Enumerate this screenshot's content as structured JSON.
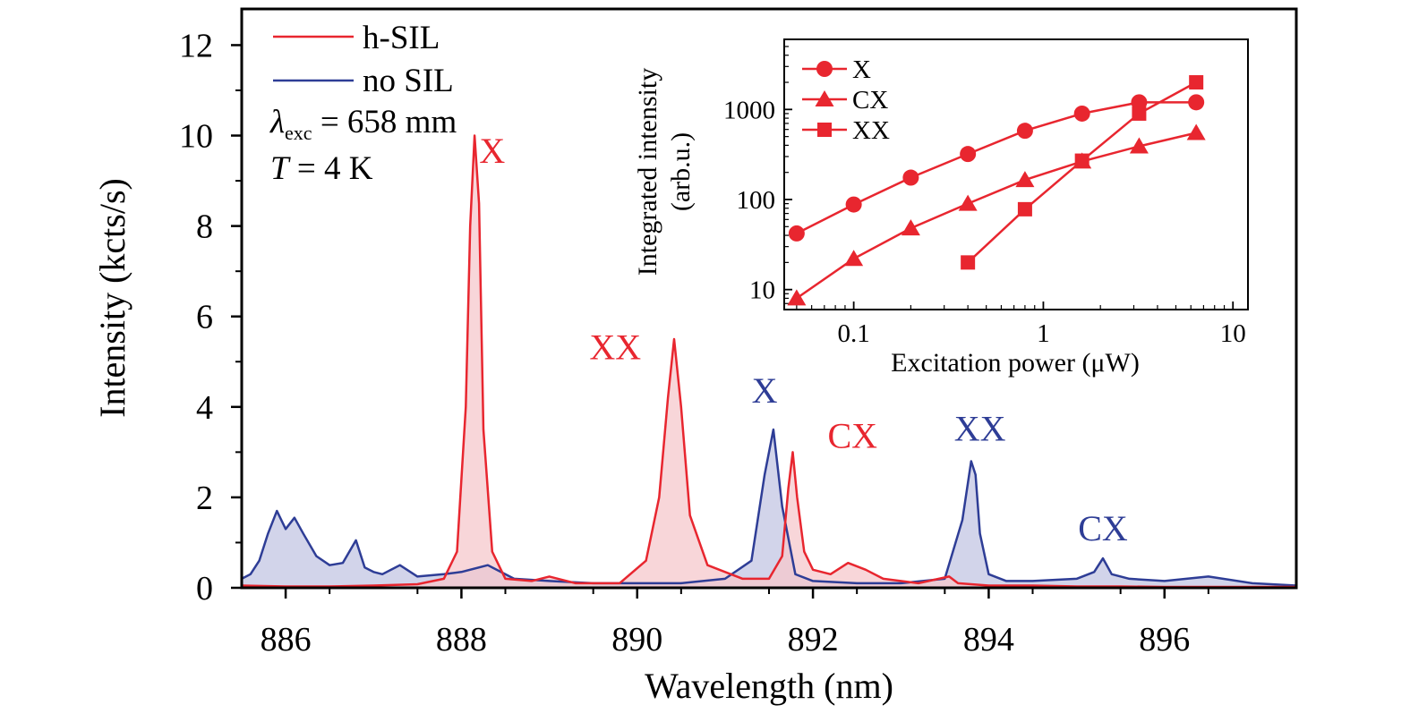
{
  "chart_data": [
    {
      "type": "line",
      "title": "",
      "xlabel": "Wavelength (nm)",
      "ylabel": "Intensity (kcts/s)",
      "xlim": [
        885.5,
        897.5
      ],
      "ylim": [
        0,
        12.8
      ],
      "xticks": [
        886,
        888,
        890,
        892,
        894,
        896
      ],
      "xtick_labels": [
        "886",
        "888",
        "890",
        "892",
        "894",
        "896"
      ],
      "yticks": [
        0,
        2,
        4,
        6,
        8,
        10,
        12
      ],
      "ytick_labels": [
        "0",
        "2",
        "4",
        "6",
        "8",
        "10",
        "12"
      ],
      "grid": false,
      "legend_position": "top-left",
      "annotation": {
        "lambda_symbol": "λ",
        "lambda_subscript": "exc",
        "lambda_value": " = 658 mm",
        "temp_symbol": "T",
        "temp_value": " = 4 K"
      },
      "series": [
        {
          "name": "h-SIL",
          "color": "#e8262f",
          "fill": "#f6c8cc",
          "x": [
            885.5,
            886.0,
            886.5,
            887.0,
            887.5,
            887.8,
            887.95,
            888.05,
            888.1,
            888.15,
            888.2,
            888.25,
            888.35,
            888.5,
            888.8,
            889.0,
            889.3,
            889.8,
            890.1,
            890.25,
            890.35,
            890.42,
            890.5,
            890.6,
            890.8,
            891.2,
            891.5,
            891.65,
            891.72,
            891.77,
            891.82,
            891.9,
            892.0,
            892.2,
            892.4,
            892.6,
            892.8,
            893.2,
            893.55,
            893.65,
            894.0,
            894.5,
            895.0,
            895.5,
            896.0,
            896.5,
            897.0,
            897.5
          ],
          "y": [
            0.05,
            0.03,
            0.03,
            0.05,
            0.08,
            0.2,
            0.8,
            4.0,
            8.0,
            10.0,
            8.5,
            3.5,
            0.8,
            0.2,
            0.15,
            0.25,
            0.1,
            0.1,
            0.6,
            2.0,
            4.2,
            5.5,
            4.0,
            1.6,
            0.5,
            0.2,
            0.2,
            0.7,
            2.2,
            3.0,
            2.0,
            0.8,
            0.4,
            0.3,
            0.55,
            0.4,
            0.2,
            0.1,
            0.25,
            0.1,
            0.05,
            0.05,
            0.03,
            0.03,
            0.02,
            0.02,
            0.02,
            0.02
          ]
        },
        {
          "name": "no SIL",
          "color": "#2e3d96",
          "fill": "#c3c6e3",
          "x": [
            885.5,
            885.6,
            885.7,
            885.8,
            885.9,
            886.0,
            886.1,
            886.2,
            886.35,
            886.5,
            886.65,
            886.8,
            886.9,
            887.0,
            887.1,
            887.3,
            887.5,
            887.8,
            888.0,
            888.3,
            888.6,
            889.0,
            889.5,
            890.0,
            890.5,
            891.0,
            891.3,
            891.45,
            891.55,
            891.65,
            891.8,
            892.0,
            892.5,
            893.0,
            893.5,
            893.7,
            893.8,
            893.85,
            893.9,
            894.0,
            894.2,
            894.5,
            895.0,
            895.2,
            895.3,
            895.4,
            895.6,
            896.0,
            896.5,
            897.0,
            897.5
          ],
          "y": [
            0.2,
            0.3,
            0.6,
            1.2,
            1.7,
            1.3,
            1.55,
            1.2,
            0.7,
            0.5,
            0.55,
            1.05,
            0.45,
            0.35,
            0.3,
            0.5,
            0.25,
            0.3,
            0.35,
            0.5,
            0.2,
            0.15,
            0.1,
            0.1,
            0.1,
            0.2,
            0.6,
            2.5,
            3.5,
            1.8,
            0.3,
            0.15,
            0.1,
            0.1,
            0.2,
            1.5,
            2.8,
            2.5,
            1.2,
            0.3,
            0.15,
            0.15,
            0.2,
            0.35,
            0.65,
            0.3,
            0.2,
            0.15,
            0.25,
            0.1,
            0.05
          ]
        }
      ],
      "peak_labels": [
        {
          "text": "X",
          "series": "h-SIL",
          "x": 888.35,
          "y": 9.4
        },
        {
          "text": "XX",
          "series": "h-SIL",
          "x": 889.75,
          "y": 5.05
        },
        {
          "text": "X",
          "series": "no SIL",
          "x": 891.45,
          "y": 4.1
        },
        {
          "text": "CX",
          "series": "h-SIL",
          "x": 892.45,
          "y": 3.1
        },
        {
          "text": "XX",
          "series": "no SIL",
          "x": 893.9,
          "y": 3.25
        },
        {
          "text": "CX",
          "series": "no SIL",
          "x": 895.3,
          "y": 1.05
        }
      ]
    },
    {
      "type": "line",
      "title": "",
      "xlabel": "Excitation power (μW)",
      "ylabel_line1": "Integrated intensity",
      "ylabel_line2": "(arb.u.)",
      "xscale": "log",
      "yscale": "log",
      "xlim": [
        0.043,
        12
      ],
      "ylim": [
        6,
        6000
      ],
      "xticks": [
        0.1,
        1,
        10
      ],
      "xtick_labels": [
        "0.1",
        "1",
        "10"
      ],
      "yticks": [
        10,
        100,
        1000
      ],
      "ytick_labels": [
        "10",
        "100",
        "1000"
      ],
      "grid": false,
      "legend_position": "top-left",
      "color": "#e8262f",
      "series": [
        {
          "name": "X",
          "marker": "circle",
          "x": [
            0.05,
            0.1,
            0.2,
            0.4,
            0.8,
            1.6,
            3.2,
            6.4
          ],
          "y": [
            42,
            88,
            175,
            320,
            580,
            900,
            1200,
            1200
          ]
        },
        {
          "name": "CX",
          "marker": "triangle",
          "x": [
            0.05,
            0.1,
            0.2,
            0.4,
            0.8,
            1.6,
            3.2,
            6.4
          ],
          "y": [
            8,
            22,
            48,
            90,
            165,
            265,
            390,
            550
          ]
        },
        {
          "name": "XX",
          "marker": "square",
          "x": [
            0.4,
            0.8,
            1.6,
            3.2,
            6.4
          ],
          "y": [
            20,
            78,
            270,
            900,
            2000
          ]
        }
      ]
    }
  ]
}
